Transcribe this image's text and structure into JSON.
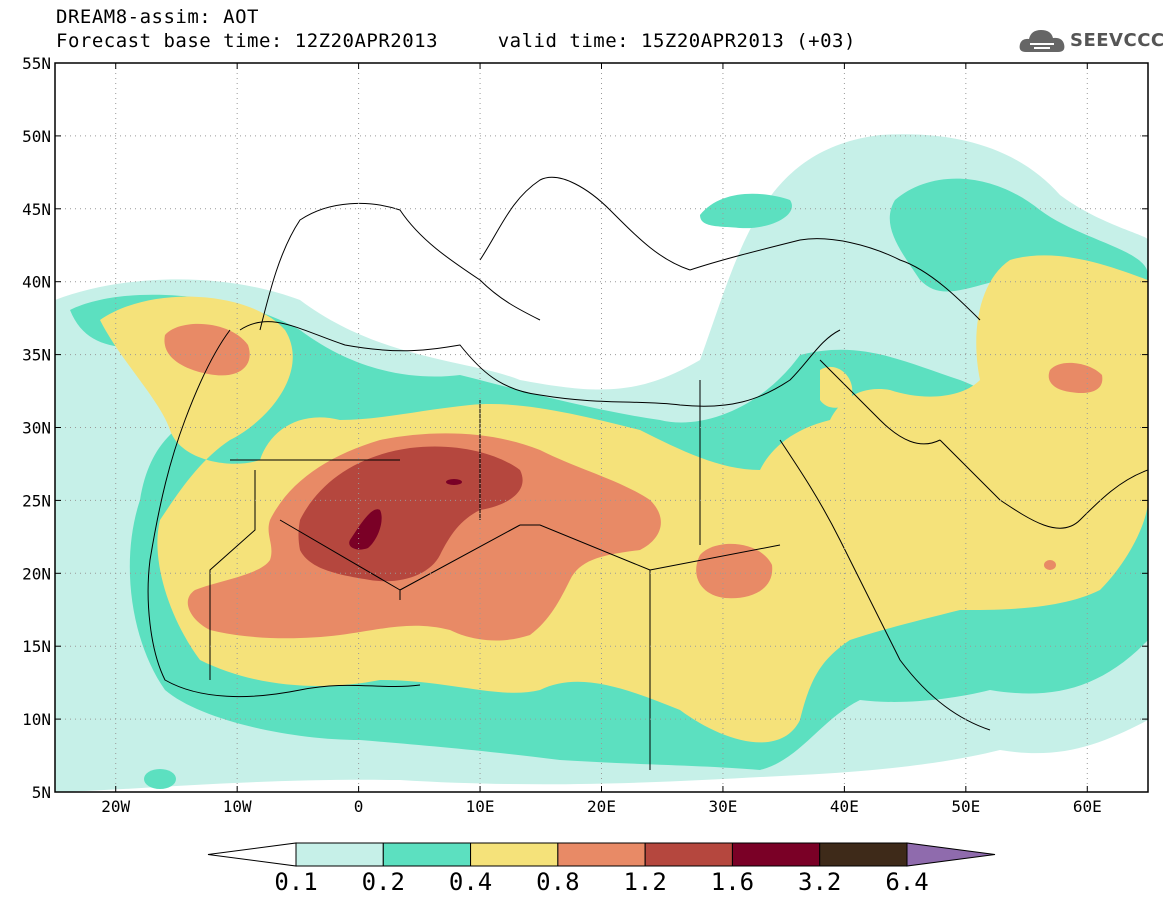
{
  "header": {
    "title_line1": "DREAM8-assim: AOT",
    "title_line2": "Forecast base time: 12Z20APR2013     valid time: 15Z20APR2013 (+03)"
  },
  "logo": {
    "text": "SEEVCCC",
    "icon": "cloud-icon"
  },
  "map": {
    "projection": "lat-lon",
    "lon_range": [
      -25,
      65
    ],
    "lat_range": [
      5,
      55
    ],
    "grid": true,
    "lon_ticks": [
      "20W",
      "10W",
      "0",
      "10E",
      "20E",
      "30E",
      "40E",
      "50E",
      "60E"
    ],
    "lat_ticks": [
      "5N",
      "10N",
      "15N",
      "20N",
      "25N",
      "30N",
      "35N",
      "40N",
      "45N",
      "50N",
      "55N"
    ]
  },
  "colorbar": {
    "labels": [
      "0.1",
      "0.2",
      "0.4",
      "0.8",
      "1.2",
      "1.6",
      "3.2",
      "6.4"
    ],
    "colors": [
      "#ffffff",
      "#c6f0e8",
      "#5ce0c0",
      "#f5e27a",
      "#e88a66",
      "#b5473e",
      "#7a0026",
      "#3e2a19",
      "#8f6bad"
    ]
  }
}
